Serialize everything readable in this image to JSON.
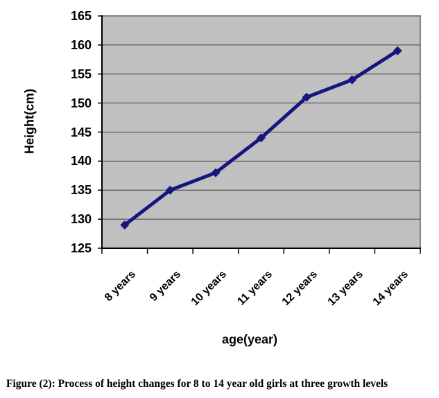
{
  "figure": {
    "caption": "Figure (2): Process of height changes for 8 to 14 year old girls at three growth levels"
  },
  "chart_data": {
    "type": "line",
    "title": "",
    "categories": [
      "8 years",
      "9 years",
      "10 years",
      "11 years",
      "12 years",
      "13 years",
      "14 years"
    ],
    "values": [
      129,
      135,
      138,
      144,
      151,
      154,
      159
    ],
    "series": [
      {
        "name": "Height",
        "values": [
          129,
          135,
          138,
          144,
          151,
          154,
          159
        ]
      }
    ],
    "xlabel": "age(year)",
    "ylabel": "Height(cm)",
    "ylim": [
      125,
      165
    ],
    "ytick_step": 5,
    "yticks": [
      165,
      160,
      155,
      150,
      145,
      140,
      135,
      130,
      125
    ],
    "grid": true,
    "legend": "none",
    "marker_shape": "diamond",
    "x_label_rotation_deg": 45,
    "colors": {
      "line": "#16167f",
      "marker": "#16167f",
      "plot_bg": "#c0c0c0",
      "plot_border": "#808080",
      "gridline": "#404040",
      "axis": "#000000",
      "text": "#000000",
      "page_bg": "#ffffff"
    }
  }
}
